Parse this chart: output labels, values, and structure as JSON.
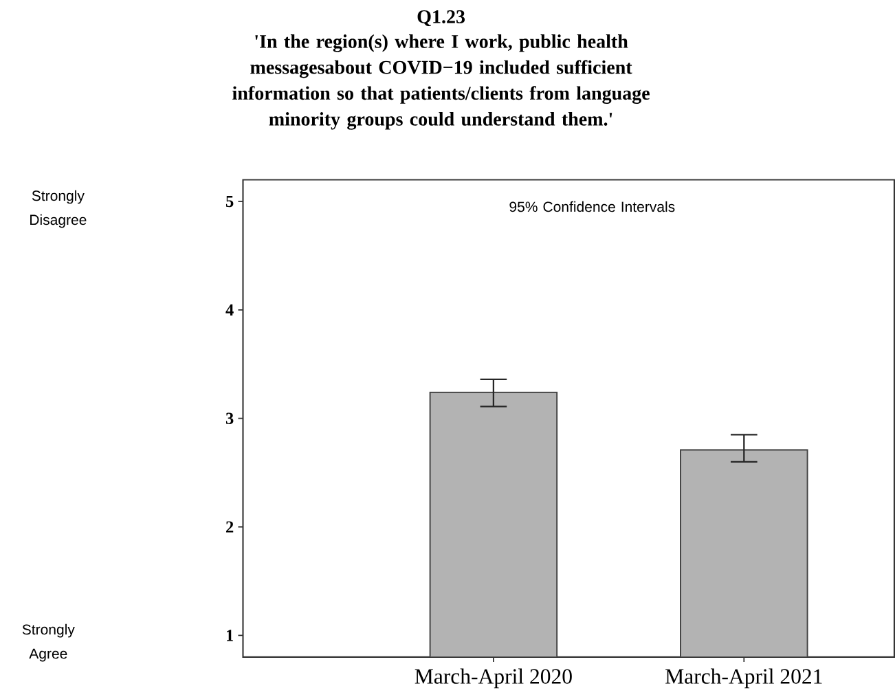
{
  "chart_data": {
    "type": "bar",
    "title": "Q1.23",
    "subtitle": "'In the region(s) where I work, public health messagesabout COVID−19 included sufficient information so that patients/clients from language minority groups could understand them.'",
    "categories": [
      "March-April 2020",
      "March-April 2021"
    ],
    "values": [
      3.24,
      2.71
    ],
    "errors": [
      [
        3.11,
        3.36
      ],
      [
        2.6,
        2.85
      ]
    ],
    "color": "#b3b3b3",
    "ylim": [
      0.8,
      5.2
    ],
    "yticks": [
      1,
      2,
      3,
      4,
      5
    ],
    "annotations": [
      "Strongly Disagree",
      "Strongly Agree",
      "95% Confidence Intervals"
    ]
  }
}
